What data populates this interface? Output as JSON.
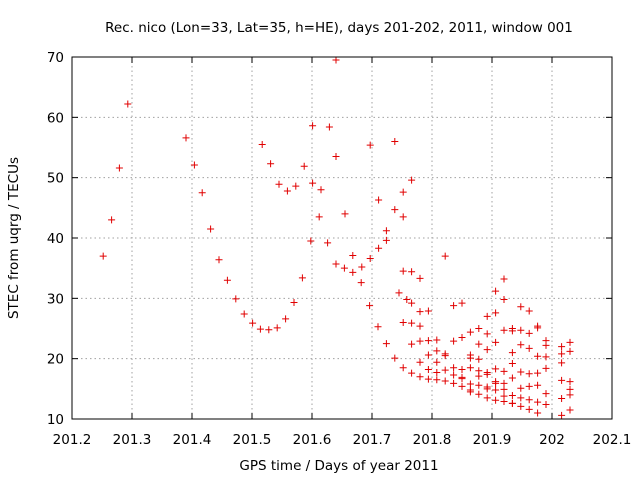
{
  "chart_data": {
    "type": "scatter",
    "title": "Rec. nico (Lon=33, Lat=35, h=HE), days 201-202, 2011, window 001",
    "xlabel": "GPS time / Days of year 2011",
    "ylabel": "STEC from uqrg / TECUs",
    "xlim": [
      201.2,
      202.1
    ],
    "ylim": [
      10,
      70
    ],
    "xticks": [
      "201.2",
      "201.3",
      "201.4",
      "201.5",
      "201.6",
      "201.7",
      "201.8",
      "201.9",
      "202",
      "202.1"
    ],
    "yticks": [
      "10",
      "20",
      "30",
      "40",
      "50",
      "60",
      "70"
    ],
    "grid": true,
    "marker": "+",
    "marker_color": "#e00000",
    "points": [
      [
        201.252,
        37.0
      ],
      [
        201.266,
        43.0
      ],
      [
        201.279,
        51.6
      ],
      [
        201.293,
        62.2
      ],
      [
        201.39,
        56.6
      ],
      [
        201.404,
        52.1
      ],
      [
        201.417,
        47.5
      ],
      [
        201.431,
        41.5
      ],
      [
        201.445,
        36.4
      ],
      [
        201.459,
        33.0
      ],
      [
        201.473,
        29.9
      ],
      [
        201.487,
        27.4
      ],
      [
        201.501,
        25.9
      ],
      [
        201.514,
        24.9
      ],
      [
        201.528,
        24.8
      ],
      [
        201.542,
        25.1
      ],
      [
        201.556,
        26.6
      ],
      [
        201.57,
        29.3
      ],
      [
        201.584,
        33.4
      ],
      [
        201.598,
        39.5
      ],
      [
        201.612,
        43.5
      ],
      [
        201.626,
        39.2
      ],
      [
        201.64,
        35.7
      ],
      [
        201.654,
        35.0
      ],
      [
        201.668,
        34.3
      ],
      [
        201.682,
        32.6
      ],
      [
        201.696,
        28.8
      ],
      [
        201.71,
        25.3
      ],
      [
        201.724,
        22.5
      ],
      [
        201.738,
        20.1
      ],
      [
        201.752,
        18.5
      ],
      [
        201.766,
        17.6
      ],
      [
        201.78,
        17.0
      ],
      [
        201.794,
        16.6
      ],
      [
        201.808,
        16.5
      ],
      [
        201.822,
        16.3
      ],
      [
        201.836,
        15.9
      ],
      [
        201.85,
        15.4
      ],
      [
        201.864,
        14.8
      ],
      [
        201.878,
        14.1
      ],
      [
        201.892,
        13.5
      ],
      [
        201.906,
        13.1
      ],
      [
        201.92,
        12.9
      ],
      [
        201.934,
        12.6
      ],
      [
        201.948,
        12.1
      ],
      [
        201.962,
        11.6
      ],
      [
        201.976,
        11.0
      ],
      [
        202.016,
        10.6
      ],
      [
        202.03,
        11.5
      ],
      [
        201.517,
        55.5
      ],
      [
        201.531,
        52.3
      ],
      [
        201.545,
        48.9
      ],
      [
        201.559,
        47.8
      ],
      [
        201.573,
        48.6
      ],
      [
        201.587,
        51.9
      ],
      [
        201.601,
        58.6
      ],
      [
        201.615,
        48.0
      ],
      [
        201.629,
        58.4
      ],
      [
        201.64,
        53.5
      ],
      [
        201.64,
        69.5
      ],
      [
        201.655,
        44.0
      ],
      [
        201.668,
        37.1
      ],
      [
        201.683,
        35.2
      ],
      [
        201.697,
        55.4
      ],
      [
        201.711,
        46.3
      ],
      [
        201.724,
        41.2
      ],
      [
        201.738,
        56.0
      ],
      [
        201.752,
        47.6
      ],
      [
        201.766,
        49.6
      ],
      [
        201.78,
        33.3
      ],
      [
        201.794,
        27.9
      ],
      [
        201.808,
        23.1
      ],
      [
        201.822,
        37.0
      ],
      [
        201.601,
        49.1
      ],
      [
        201.697,
        36.6
      ],
      [
        201.711,
        38.3
      ],
      [
        201.724,
        39.6
      ],
      [
        201.738,
        44.7
      ],
      [
        201.752,
        43.5
      ],
      [
        201.766,
        34.4
      ],
      [
        201.745,
        30.9
      ],
      [
        201.752,
        34.5
      ],
      [
        201.758,
        29.8
      ],
      [
        201.766,
        29.2
      ],
      [
        201.78,
        27.8
      ],
      [
        201.752,
        26.0
      ],
      [
        201.766,
        25.9
      ],
      [
        201.78,
        25.4
      ],
      [
        201.794,
        23.0
      ],
      [
        201.808,
        21.3
      ],
      [
        201.822,
        20.8
      ],
      [
        201.836,
        28.8
      ],
      [
        201.85,
        29.2
      ],
      [
        201.864,
        24.4
      ],
      [
        201.878,
        25.0
      ],
      [
        201.892,
        27.0
      ],
      [
        201.906,
        31.2
      ],
      [
        201.92,
        33.2
      ],
      [
        201.934,
        25.0
      ],
      [
        201.948,
        28.6
      ],
      [
        201.962,
        27.9
      ],
      [
        201.976,
        25.4
      ],
      [
        201.99,
        23.0
      ],
      [
        202.016,
        22.0
      ],
      [
        202.03,
        22.7
      ],
      [
        201.766,
        22.4
      ],
      [
        201.78,
        22.9
      ],
      [
        201.794,
        20.6
      ],
      [
        201.808,
        19.4
      ],
      [
        201.822,
        20.5
      ],
      [
        201.836,
        18.5
      ],
      [
        201.85,
        18.2
      ],
      [
        201.864,
        20.6
      ],
      [
        201.878,
        22.4
      ],
      [
        201.892,
        24.1
      ],
      [
        201.906,
        27.6
      ],
      [
        201.92,
        29.8
      ],
      [
        201.934,
        24.6
      ],
      [
        201.948,
        24.7
      ],
      [
        201.962,
        24.2
      ],
      [
        201.976,
        25.1
      ],
      [
        201.99,
        22.2
      ],
      [
        202.016,
        20.8
      ],
      [
        202.03,
        21.2
      ],
      [
        201.78,
        19.4
      ],
      [
        201.794,
        18.2
      ],
      [
        201.808,
        17.7
      ],
      [
        201.822,
        18.1
      ],
      [
        201.836,
        17.3
      ],
      [
        201.85,
        16.9
      ],
      [
        201.864,
        18.5
      ],
      [
        201.878,
        19.9
      ],
      [
        201.892,
        21.5
      ],
      [
        201.906,
        22.7
      ],
      [
        201.92,
        24.7
      ],
      [
        201.934,
        21.0
      ],
      [
        201.948,
        22.3
      ],
      [
        201.962,
        21.7
      ],
      [
        201.976,
        20.4
      ],
      [
        201.99,
        20.3
      ],
      [
        202.016,
        19.3
      ],
      [
        202.03,
        16.2
      ],
      [
        201.836,
        22.9
      ],
      [
        201.85,
        23.5
      ],
      [
        201.864,
        20.1
      ],
      [
        201.878,
        18.0
      ],
      [
        201.892,
        17.7
      ],
      [
        201.906,
        18.3
      ],
      [
        201.92,
        17.9
      ],
      [
        201.934,
        19.2
      ],
      [
        201.948,
        17.8
      ],
      [
        201.962,
        17.5
      ],
      [
        201.976,
        17.6
      ],
      [
        201.99,
        18.4
      ],
      [
        202.016,
        16.4
      ],
      [
        202.03,
        14.9
      ],
      [
        201.85,
        16.7
      ],
      [
        201.864,
        15.8
      ],
      [
        201.878,
        15.6
      ],
      [
        201.892,
        15.3
      ],
      [
        201.906,
        15.9
      ],
      [
        201.92,
        14.9
      ],
      [
        201.934,
        16.8
      ],
      [
        201.948,
        15.1
      ],
      [
        201.962,
        15.4
      ],
      [
        201.976,
        15.6
      ],
      [
        201.99,
        14.2
      ],
      [
        202.016,
        13.4
      ],
      [
        202.03,
        14.0
      ],
      [
        201.864,
        14.5
      ],
      [
        201.878,
        17.1
      ],
      [
        201.892,
        17.4
      ],
      [
        201.906,
        16.2
      ],
      [
        201.92,
        15.9
      ],
      [
        201.934,
        13.9
      ],
      [
        201.948,
        13.5
      ],
      [
        201.962,
        13.2
      ],
      [
        201.976,
        12.8
      ],
      [
        201.99,
        12.4
      ],
      [
        201.892,
        15.0
      ],
      [
        201.906,
        14.8
      ],
      [
        201.92,
        13.8
      ],
      [
        201.934,
        12.6
      ]
    ]
  }
}
